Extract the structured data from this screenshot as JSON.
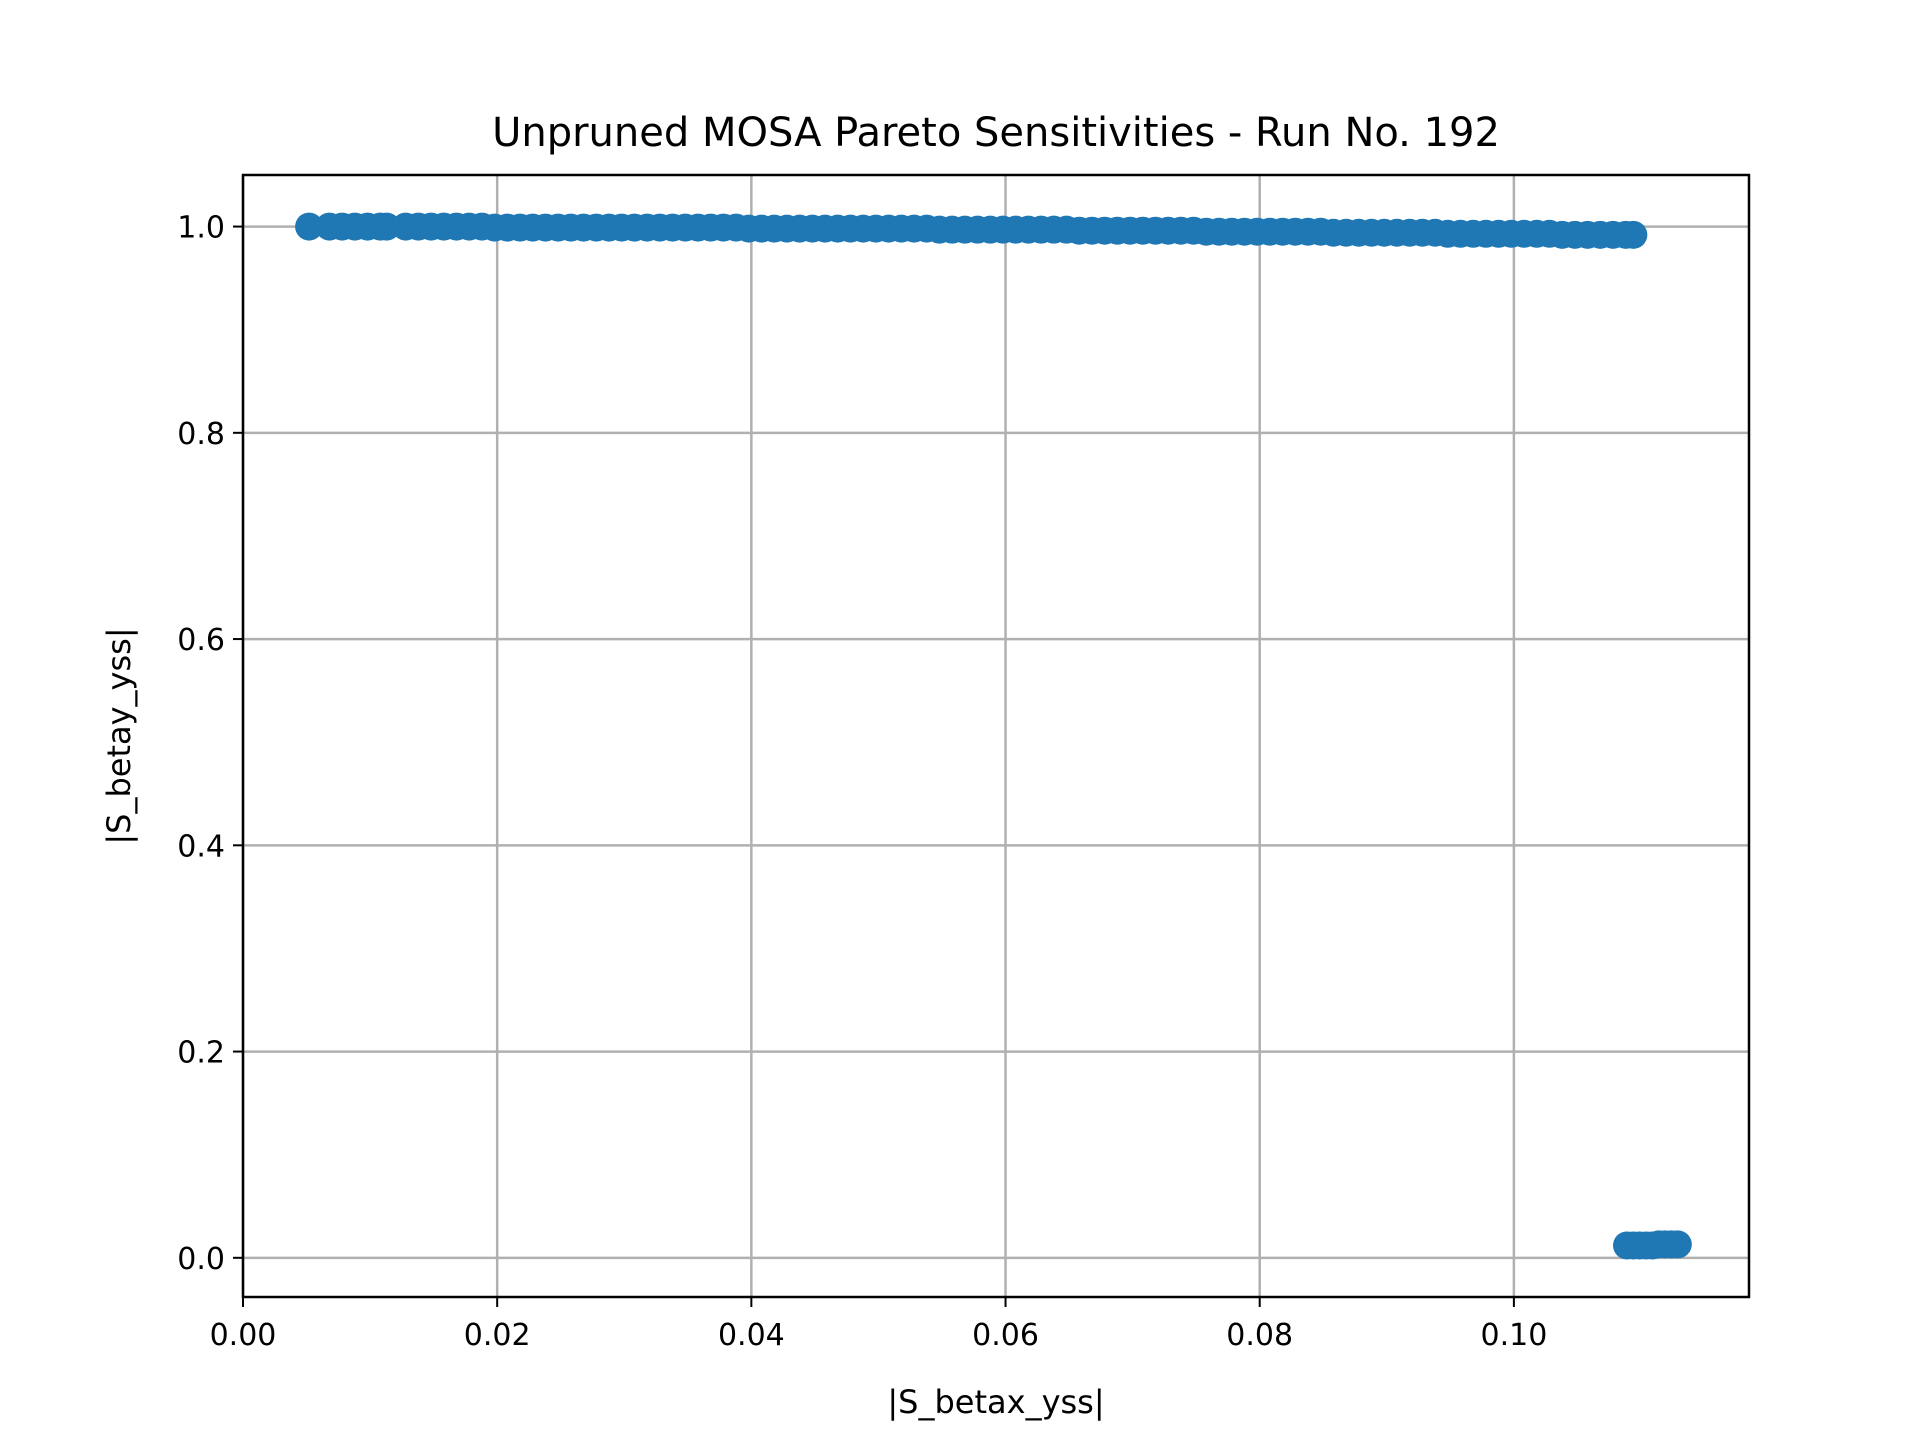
{
  "chart_data": {
    "type": "scatter",
    "title": "Unpruned MOSA Pareto Sensitivities - Run No. 192",
    "xlabel": "|S_betax_yss|",
    "ylabel": "|S_betay_yss|",
    "xlim": [
      0.0,
      0.1185
    ],
    "ylim": [
      -0.038,
      1.05
    ],
    "xticks": [
      0.0,
      0.02,
      0.04,
      0.06,
      0.08,
      0.1
    ],
    "xtick_labels": [
      "0.00",
      "0.02",
      "0.04",
      "0.06",
      "0.08",
      "0.10"
    ],
    "yticks": [
      0.0,
      0.2,
      0.4,
      0.6,
      0.8,
      1.0
    ],
    "ytick_labels": [
      "0.0",
      "0.2",
      "0.4",
      "0.6",
      "0.8",
      "1.0"
    ],
    "grid": true,
    "color": "#1f77b4",
    "series": [
      {
        "points": [
          [
            0.0052,
            1.0
          ],
          [
            0.0068,
            1.0
          ],
          [
            0.0078,
            1.0
          ],
          [
            0.0088,
            1.0
          ],
          [
            0.0098,
            1.0
          ],
          [
            0.0108,
            1.0
          ],
          [
            0.0113,
            1.0
          ],
          [
            0.0128,
            1.0
          ],
          [
            0.0138,
            1.0
          ],
          [
            0.0148,
            1.0
          ],
          [
            0.0158,
            1.0
          ],
          [
            0.0168,
            1.0
          ],
          [
            0.0178,
            1.0
          ],
          [
            0.0188,
            1.0
          ],
          [
            0.0198,
            0.999
          ],
          [
            0.0208,
            0.999
          ],
          [
            0.0218,
            0.999
          ],
          [
            0.0228,
            0.999
          ],
          [
            0.0238,
            0.999
          ],
          [
            0.0248,
            0.999
          ],
          [
            0.0258,
            0.999
          ],
          [
            0.0268,
            0.999
          ],
          [
            0.0278,
            0.999
          ],
          [
            0.0288,
            0.999
          ],
          [
            0.0298,
            0.999
          ],
          [
            0.0308,
            0.999
          ],
          [
            0.0318,
            0.999
          ],
          [
            0.0328,
            0.999
          ],
          [
            0.0338,
            0.999
          ],
          [
            0.0348,
            0.999
          ],
          [
            0.0358,
            0.999
          ],
          [
            0.0368,
            0.999
          ],
          [
            0.0378,
            0.999
          ],
          [
            0.0388,
            0.999
          ],
          [
            0.0398,
            0.998
          ],
          [
            0.0408,
            0.998
          ],
          [
            0.0418,
            0.998
          ],
          [
            0.0428,
            0.998
          ],
          [
            0.0438,
            0.998
          ],
          [
            0.0448,
            0.998
          ],
          [
            0.0458,
            0.998
          ],
          [
            0.0468,
            0.998
          ],
          [
            0.0478,
            0.998
          ],
          [
            0.0488,
            0.998
          ],
          [
            0.0498,
            0.998
          ],
          [
            0.0508,
            0.998
          ],
          [
            0.0518,
            0.998
          ],
          [
            0.0528,
            0.998
          ],
          [
            0.0538,
            0.998
          ],
          [
            0.0548,
            0.997
          ],
          [
            0.0558,
            0.997
          ],
          [
            0.0568,
            0.997
          ],
          [
            0.0578,
            0.997
          ],
          [
            0.0588,
            0.997
          ],
          [
            0.0598,
            0.997
          ],
          [
            0.0608,
            0.997
          ],
          [
            0.0618,
            0.997
          ],
          [
            0.0628,
            0.997
          ],
          [
            0.0638,
            0.997
          ],
          [
            0.0648,
            0.997
          ],
          [
            0.0658,
            0.996
          ],
          [
            0.0668,
            0.996
          ],
          [
            0.0678,
            0.996
          ],
          [
            0.0688,
            0.996
          ],
          [
            0.0698,
            0.996
          ],
          [
            0.0708,
            0.996
          ],
          [
            0.0718,
            0.996
          ],
          [
            0.0728,
            0.996
          ],
          [
            0.0738,
            0.996
          ],
          [
            0.0748,
            0.996
          ],
          [
            0.0758,
            0.995
          ],
          [
            0.0768,
            0.995
          ],
          [
            0.0778,
            0.995
          ],
          [
            0.0788,
            0.995
          ],
          [
            0.0798,
            0.995
          ],
          [
            0.0808,
            0.995
          ],
          [
            0.0818,
            0.995
          ],
          [
            0.0828,
            0.995
          ],
          [
            0.0838,
            0.995
          ],
          [
            0.0848,
            0.995
          ],
          [
            0.0858,
            0.994
          ],
          [
            0.0868,
            0.994
          ],
          [
            0.0878,
            0.994
          ],
          [
            0.0888,
            0.994
          ],
          [
            0.0898,
            0.994
          ],
          [
            0.0908,
            0.994
          ],
          [
            0.0918,
            0.994
          ],
          [
            0.0928,
            0.994
          ],
          [
            0.0938,
            0.994
          ],
          [
            0.0948,
            0.993
          ],
          [
            0.0958,
            0.993
          ],
          [
            0.0968,
            0.993
          ],
          [
            0.0978,
            0.993
          ],
          [
            0.0988,
            0.993
          ],
          [
            0.0998,
            0.993
          ],
          [
            0.1008,
            0.993
          ],
          [
            0.1018,
            0.993
          ],
          [
            0.1028,
            0.993
          ],
          [
            0.1038,
            0.992
          ],
          [
            0.1048,
            0.992
          ],
          [
            0.1058,
            0.992
          ],
          [
            0.1068,
            0.992
          ],
          [
            0.1078,
            0.992
          ],
          [
            0.1088,
            0.992
          ],
          [
            0.1094,
            0.992
          ],
          [
            0.1089,
            0.012
          ],
          [
            0.1094,
            0.012
          ],
          [
            0.1099,
            0.012
          ],
          [
            0.1104,
            0.012
          ],
          [
            0.1109,
            0.012
          ],
          [
            0.1114,
            0.013
          ],
          [
            0.1119,
            0.013
          ],
          [
            0.1124,
            0.013
          ],
          [
            0.1129,
            0.013
          ]
        ]
      }
    ]
  }
}
